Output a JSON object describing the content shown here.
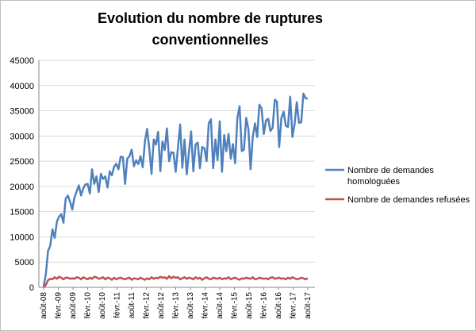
{
  "chart_data": {
    "type": "line",
    "title": "Evolution du nombre de ruptures conventionnelles",
    "xlabel": "",
    "ylabel": "",
    "ylim": [
      0,
      45000
    ],
    "yticks": [
      0,
      5000,
      10000,
      15000,
      20000,
      25000,
      30000,
      35000,
      40000,
      45000
    ],
    "ytick_labels": [
      "0",
      "5000",
      "10000",
      "15000",
      "20000",
      "25000",
      "30000",
      "35000",
      "40000",
      "45000"
    ],
    "x_start": "2008-08",
    "x_end": "2017-08",
    "x_tick_labels": [
      "août-08",
      "févr.-09",
      "août-09",
      "févr.-10",
      "août-10",
      "févr.-11",
      "août-11",
      "févr.-12",
      "août-12",
      "févr.-13",
      "août-13",
      "févr.-14",
      "août-14",
      "févr.-15",
      "août-15",
      "févr.-16",
      "août-16",
      "févr.-17",
      "août-17"
    ],
    "grid": {
      "horizontal": true,
      "vertical": false
    },
    "legend_position": "right",
    "series": [
      {
        "name": "Nombre de demandes homologuées",
        "color": "#4f81bd",
        "values": [
          200,
          2600,
          7200,
          8200,
          11500,
          9800,
          13000,
          14000,
          14500,
          12800,
          17600,
          18200,
          17000,
          15400,
          17800,
          19000,
          20200,
          18200,
          19600,
          20400,
          20500,
          18600,
          23400,
          20500,
          22000,
          18900,
          22500,
          21500,
          22000,
          19800,
          23000,
          22200,
          23900,
          24500,
          23400,
          25900,
          25800,
          20500,
          25500,
          26000,
          27300,
          24000,
          25200,
          24400,
          26000,
          23800,
          28900,
          31400,
          27500,
          22500,
          29300,
          28300,
          30800,
          23000,
          28900,
          27200,
          31500,
          25000,
          26800,
          26700,
          22900,
          27700,
          32300,
          23700,
          29300,
          22400,
          26900,
          30900,
          23000,
          28300,
          28700,
          23600,
          27800,
          27600,
          25000,
          32500,
          33300,
          23600,
          29300,
          25200,
          32900,
          22900,
          30200,
          27000,
          30400,
          25500,
          28400,
          24600,
          33600,
          35900,
          27000,
          27300,
          33600,
          31400,
          23400,
          29800,
          32500,
          29800,
          36200,
          35500,
          30400,
          33100,
          33400,
          31000,
          31600,
          37200,
          36800,
          27800,
          33600,
          34800,
          32000,
          31800,
          37800,
          29800,
          32300,
          36700,
          32600,
          32700,
          38400,
          37500,
          37400
        ]
      },
      {
        "name": "Nombre de demandes refusées",
        "color": "#c0504d",
        "values": [
          0,
          500,
          1400,
          1700,
          1600,
          2000,
          1700,
          2100,
          1900,
          1600,
          1900,
          1900,
          1700,
          1800,
          1700,
          2000,
          1900,
          1600,
          2000,
          1800,
          1600,
          1900,
          1700,
          2100,
          2000,
          1700,
          1800,
          2000,
          1600,
          1900,
          1800,
          1500,
          1900,
          1600,
          1800,
          1900,
          1700,
          1600,
          1800,
          1900,
          1500,
          1800,
          1700,
          1600,
          1900,
          1700,
          1500,
          1800,
          1600,
          2000,
          1700,
          1900,
          1800,
          2100,
          1900,
          2000,
          1700,
          2200,
          1800,
          2100,
          1900,
          2000,
          1600,
          1800,
          2000,
          1700,
          1900,
          1800,
          1600,
          2000,
          1700,
          1900,
          1500,
          1800,
          2000,
          1700,
          1600,
          1900,
          1800,
          1700,
          1900,
          1600,
          1800,
          1700,
          2000,
          1600,
          1800,
          1900,
          1700,
          1500,
          1800,
          1700,
          1900,
          1800,
          1700,
          2000,
          1600,
          1700,
          1900,
          1800,
          1700,
          1800,
          1600,
          1900,
          2000,
          1700,
          1800,
          1900,
          1700,
          1800,
          1600,
          1900,
          1700,
          2000,
          1800,
          1600,
          1700,
          1900,
          1800,
          1600,
          1800
        ]
      }
    ]
  }
}
